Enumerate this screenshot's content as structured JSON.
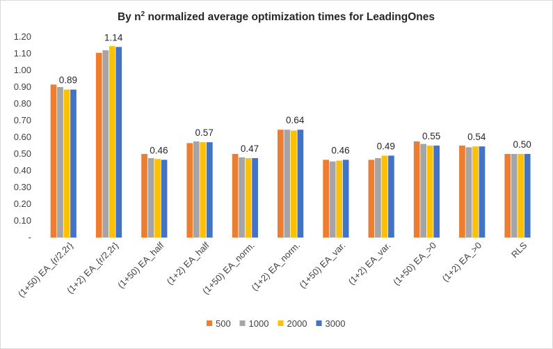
{
  "chart_data": {
    "type": "bar",
    "title_prefix": "By n",
    "title_sup": "2",
    "title_suffix": " normalized average optimization times for LeadingOnes",
    "categories": [
      "(1+50) EA_{r/2,2r}",
      "(1+2) EA_{r/2,2r}",
      "(1+50) EA_half",
      "(1+2) EA_half",
      "(1+50) EA_norm.",
      "(1+2) EA_norm.",
      "(1+50) EA_var.",
      "(1+2) EA_var.",
      "(1+50) EA_>0",
      "(1+2) EA_>0",
      "RLS"
    ],
    "series": [
      {
        "name": "500",
        "color": "#ED7D31",
        "values": [
          0.915,
          1.105,
          0.5,
          0.565,
          0.5,
          0.645,
          0.465,
          0.465,
          0.575,
          0.55,
          0.5
        ]
      },
      {
        "name": "1000",
        "color": "#A5A5A5",
        "values": [
          0.9,
          1.12,
          0.475,
          0.575,
          0.48,
          0.645,
          0.455,
          0.475,
          0.56,
          0.54,
          0.5
        ]
      },
      {
        "name": "2000",
        "color": "#FFC000",
        "values": [
          0.885,
          1.145,
          0.47,
          0.57,
          0.475,
          0.64,
          0.46,
          0.49,
          0.55,
          0.545,
          0.5
        ]
      },
      {
        "name": "3000",
        "color": "#4472C4",
        "values": [
          0.885,
          1.14,
          0.465,
          0.57,
          0.475,
          0.645,
          0.465,
          0.49,
          0.55,
          0.545,
          0.5
        ]
      }
    ],
    "data_labels": [
      "0.89",
      "1.14",
      "0.46",
      "0.57",
      "0.47",
      "0.64",
      "0.46",
      "0.49",
      "0.55",
      "0.54",
      "0.50"
    ],
    "y_tick_labels": [
      "-",
      "0.10",
      "0.20",
      "0.30",
      "0.40",
      "0.50",
      "0.60",
      "0.70",
      "0.80",
      "0.90",
      "1.00",
      "1.10",
      "1.20"
    ],
    "ylim": [
      0,
      1.2
    ],
    "grid": false,
    "legend_position": "bottom"
  }
}
